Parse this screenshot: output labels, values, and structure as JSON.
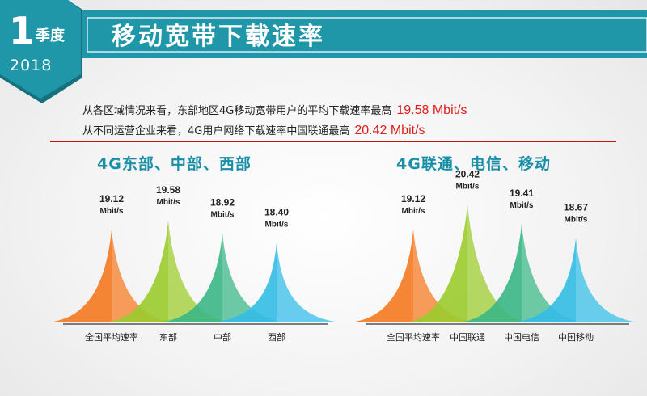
{
  "header": {
    "quarter_number": "1",
    "quarter_label": "季度",
    "year": "2018",
    "title": "移动宽带下载速率"
  },
  "summary": {
    "line1_text": "从各区域情况来看，东部地区4G移动宽带用户的平均下载速率最高",
    "line1_value": "19.58 Mbit/s",
    "line2_text": "从不同运营企业来看，4G用户网络下载速率中国联通最高",
    "line2_value": "20.42 Mbit/s"
  },
  "colors": {
    "teal": "#1f97a9",
    "dark_teal": "#17707e",
    "red": "#c80f0f",
    "orange": "#f47920",
    "lime": "#9bcb2c",
    "green": "#3bb786",
    "sky": "#33bde6"
  },
  "chart_data": [
    {
      "type": "area",
      "title": "4G东部、中部、西部",
      "unit": "Mbit/s",
      "categories": [
        "全国平均速率",
        "东部",
        "中部",
        "西部"
      ],
      "values": [
        19.12,
        19.58,
        18.92,
        18.4
      ],
      "value_labels": [
        "19.12",
        "19.58",
        "18.92",
        "18.40"
      ],
      "colors": [
        "#f47920",
        "#9bcb2c",
        "#3bb786",
        "#33bde6"
      ]
    },
    {
      "type": "area",
      "title": "4G联通、电信、移动",
      "unit": "Mbit/s",
      "categories": [
        "全国平均速率",
        "中国联通",
        "中国电信",
        "中国移动"
      ],
      "values": [
        19.12,
        20.42,
        19.41,
        18.67
      ],
      "value_labels": [
        "19.12",
        "20.42",
        "19.41",
        "18.67"
      ],
      "colors": [
        "#f47920",
        "#9bcb2c",
        "#3bb786",
        "#33bde6"
      ]
    }
  ]
}
